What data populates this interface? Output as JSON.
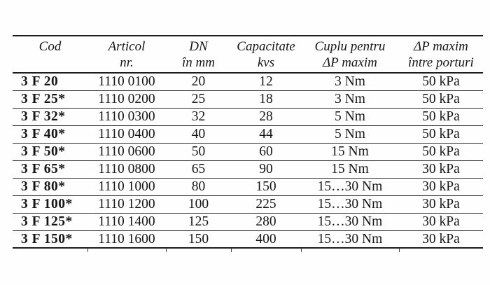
{
  "table": {
    "columns": [
      {
        "line1": "Cod",
        "line2": ""
      },
      {
        "line1": "Articol",
        "line2": "nr."
      },
      {
        "line1": "DN",
        "line2": "în mm"
      },
      {
        "line1": "Capacitate",
        "line2": "kvs"
      },
      {
        "line1": "Cuplu pentru",
        "line2": "ΔP maxim"
      },
      {
        "line1": "ΔP maxim",
        "line2": "între porturi"
      }
    ],
    "rows": [
      [
        "3 F 20",
        "1110 0100",
        "20",
        "12",
        "3 Nm",
        "50 kPa"
      ],
      [
        "3 F 25*",
        "1110 0200",
        "25",
        "18",
        "3 Nm",
        "50 kPa"
      ],
      [
        "3 F 32*",
        "1110 0300",
        "32",
        "28",
        "5 Nm",
        "50 kPa"
      ],
      [
        "3 F 40*",
        "1110 0400",
        "40",
        "44",
        "5 Nm",
        "50 kPa"
      ],
      [
        "3 F 50*",
        "1110 0600",
        "50",
        "60",
        "15 Nm",
        "50 kPa"
      ],
      [
        "3 F 65*",
        "1110 0800",
        "65",
        "90",
        "15 Nm",
        "30 kPa"
      ],
      [
        "3 F 80*",
        "1110 1000",
        "80",
        "150",
        "15…30 Nm",
        "30 kPa"
      ],
      [
        "3 F 100*",
        "1110 1200",
        "100",
        "225",
        "15…30 Nm",
        "30 kPa"
      ],
      [
        "3 F 125*",
        "1110 1400",
        "125",
        "280",
        "15…30 Nm",
        "30 kPa"
      ],
      [
        "3 F 150*",
        "1110 1600",
        "150",
        "400",
        "15…30 Nm",
        "30 kPa"
      ]
    ],
    "colors": {
      "background": "#fefefe",
      "text": "#161616",
      "rule_heavy": "#1d1d1d",
      "rule_light": "#2c2c2c"
    }
  }
}
